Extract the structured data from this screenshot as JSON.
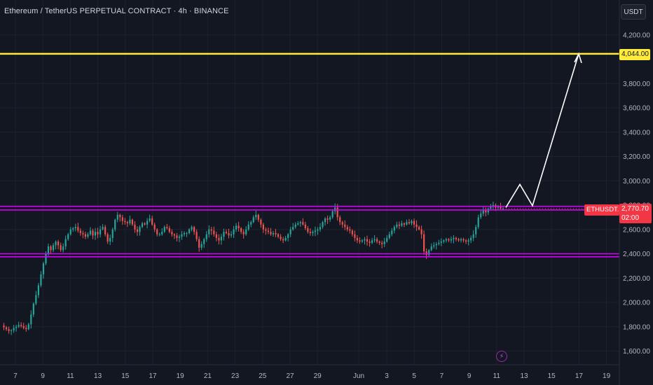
{
  "header": {
    "title": "Ethereum / TetherUS PERPETUAL CONTRACT · 4h · BINANCE",
    "currency": "USDT"
  },
  "tags": {
    "target_price": "4,044.00",
    "symbol": "ETHUSDT.P",
    "last_price": "2,770.70",
    "countdown": "02:00"
  },
  "icons": {
    "flash": "lightning-icon"
  },
  "colors": {
    "background": "#131722",
    "up": "#26a69a",
    "down": "#ef5350",
    "target_line": "#ffeb3b",
    "range_lines": "#d500f9",
    "projection": "#ffffff",
    "last_price_tag": "#f23645"
  },
  "chart_data": {
    "type": "candlestick",
    "symbol": "ETHUSDT.P",
    "interval": "4h",
    "exchange": "BINANCE",
    "y_ticks": [
      "4,200.00",
      "3,800.00",
      "3,600.00",
      "3,400.00",
      "3,200.00",
      "3,000.00",
      "2,800.00",
      "2,600.00",
      "2,400.00",
      "2,200.00",
      "2,000.00",
      "1,800.00",
      "1,600.00"
    ],
    "y_tick_values": [
      4200,
      3800,
      3600,
      3400,
      3200,
      3000,
      2800,
      2600,
      2400,
      2200,
      2000,
      1800,
      1600
    ],
    "x_ticks": [
      "7",
      "9",
      "11",
      "13",
      "15",
      "17",
      "19",
      "21",
      "23",
      "25",
      "27",
      "29",
      "Jun",
      "3",
      "5",
      "7",
      "9",
      "11",
      "13",
      "15",
      "17",
      "19"
    ],
    "ylim": [
      1500,
      4300
    ],
    "grid": true,
    "horizontal_levels": [
      {
        "name": "target",
        "price": 4044,
        "color": "#ffeb3b"
      },
      {
        "name": "range-top-upper",
        "price": 2790,
        "color": "#d500f9"
      },
      {
        "name": "range-top-lower",
        "price": 2760,
        "color": "#d500f9"
      },
      {
        "name": "range-bottom-upper",
        "price": 2400,
        "color": "#d500f9"
      },
      {
        "name": "range-bottom-lower",
        "price": 2375,
        "color": "#d500f9"
      }
    ],
    "projection_path_prices": [
      2780,
      2970,
      2795,
      4044
    ],
    "price_path": [
      1810,
      1795,
      1780,
      1765,
      1770,
      1790,
      1800,
      1815,
      1805,
      1790,
      1780,
      1820,
      1900,
      1990,
      2060,
      2140,
      2230,
      2320,
      2400,
      2460,
      2430,
      2470,
      2500,
      2470,
      2430,
      2460,
      2520,
      2560,
      2600,
      2610,
      2620,
      2590,
      2570,
      2560,
      2540,
      2560,
      2590,
      2550,
      2580,
      2560,
      2600,
      2620,
      2560,
      2500,
      2530,
      2600,
      2680,
      2720,
      2700,
      2670,
      2660,
      2650,
      2680,
      2640,
      2600,
      2580,
      2620,
      2650,
      2640,
      2670,
      2690,
      2640,
      2600,
      2560,
      2560,
      2580,
      2620,
      2610,
      2580,
      2560,
      2550,
      2530,
      2540,
      2560,
      2570,
      2570,
      2600,
      2620,
      2580,
      2520,
      2450,
      2480,
      2520,
      2560,
      2600,
      2590,
      2560,
      2530,
      2510,
      2540,
      2580,
      2570,
      2550,
      2560,
      2600,
      2630,
      2610,
      2580,
      2560,
      2600,
      2640,
      2660,
      2700,
      2720,
      2680,
      2640,
      2600,
      2590,
      2580,
      2560,
      2570,
      2560,
      2540,
      2520,
      2510,
      2530,
      2560,
      2600,
      2620,
      2640,
      2650,
      2660,
      2640,
      2610,
      2580,
      2570,
      2580,
      2590,
      2600,
      2620,
      2660,
      2690,
      2680,
      2700,
      2750,
      2780,
      2700,
      2660,
      2640,
      2620,
      2600,
      2590,
      2560,
      2530,
      2510,
      2500,
      2510,
      2520,
      2500,
      2490,
      2510,
      2520,
      2500,
      2490,
      2480,
      2500,
      2530,
      2560,
      2590,
      2620,
      2640,
      2630,
      2650,
      2640,
      2660,
      2650,
      2670,
      2640,
      2620,
      2600,
      2560,
      2420,
      2390,
      2430,
      2460,
      2470,
      2480,
      2490,
      2500,
      2510,
      2520,
      2510,
      2520,
      2530,
      2520,
      2510,
      2520,
      2510,
      2500,
      2510,
      2530,
      2560,
      2620,
      2700,
      2730,
      2760,
      2740,
      2770,
      2790,
      2800,
      2780,
      2790,
      2770,
      2771
    ]
  }
}
